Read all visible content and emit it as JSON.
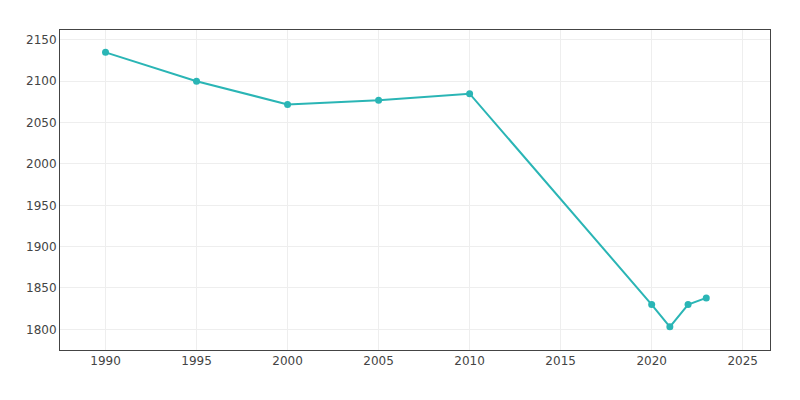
{
  "chart_data": {
    "type": "line",
    "x": [
      1990,
      1995,
      2000,
      2005,
      2010,
      2020,
      2021,
      2022,
      2023
    ],
    "values": [
      2135,
      2100,
      2072,
      2077,
      2085,
      1830,
      1803,
      1830,
      1838
    ],
    "color": "#2ab5b5",
    "marker": "circle",
    "xlim": [
      1987.5,
      2026.5
    ],
    "ylim": [
      1775,
      2162
    ],
    "xticks": [
      1990,
      1995,
      2000,
      2005,
      2010,
      2015,
      2020,
      2025
    ],
    "yticks": [
      1800,
      1850,
      1900,
      1950,
      2000,
      2050,
      2100,
      2150
    ],
    "grid": true
  }
}
